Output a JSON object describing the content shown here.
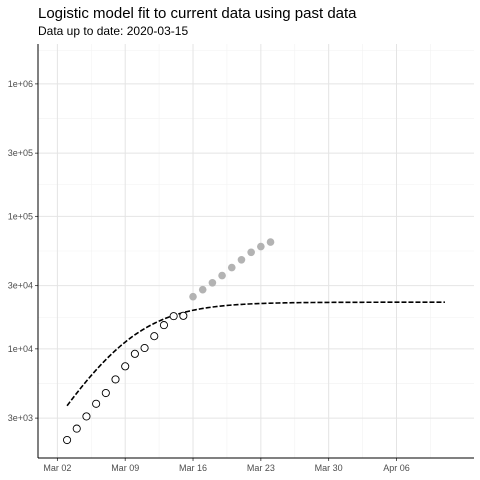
{
  "chart_data": {
    "type": "scatter",
    "title": "Logistic model fit to current data using past data",
    "subtitle": "Data up to date: 2020-03-15",
    "xlabel": "",
    "ylabel": "",
    "x_scale": "date",
    "y_scale": "log10",
    "xlim": [
      "2020-02-29",
      "2020-04-14"
    ],
    "ylim": [
      1500,
      2000000
    ],
    "x_ticks": [
      {
        "date": "2020-03-02",
        "label": "Mar 02"
      },
      {
        "date": "2020-03-09",
        "label": "Mar 09"
      },
      {
        "date": "2020-03-16",
        "label": "Mar 16"
      },
      {
        "date": "2020-03-23",
        "label": "Mar 23"
      },
      {
        "date": "2020-03-30",
        "label": "Mar 30"
      },
      {
        "date": "2020-04-06",
        "label": "Apr 06"
      }
    ],
    "y_ticks": [
      {
        "value": 3000,
        "label": "3e+03"
      },
      {
        "value": 10000,
        "label": "1e+04"
      },
      {
        "value": 30000,
        "label": "3e+04"
      },
      {
        "value": 100000,
        "label": "1e+05"
      },
      {
        "value": 300000,
        "label": "3e+05"
      },
      {
        "value": 1000000,
        "label": "1e+06"
      }
    ],
    "grid": true,
    "series": [
      {
        "marker": "hollow-circle",
        "color": "#000000",
        "points": [
          {
            "x": "2020-03-03",
            "y": 2050
          },
          {
            "x": "2020-03-04",
            "y": 2500
          },
          {
            "x": "2020-03-05",
            "y": 3090
          },
          {
            "x": "2020-03-06",
            "y": 3850
          },
          {
            "x": "2020-03-07",
            "y": 4640
          },
          {
            "x": "2020-03-08",
            "y": 5880
          },
          {
            "x": "2020-03-09",
            "y": 7380
          },
          {
            "x": "2020-03-10",
            "y": 9170
          },
          {
            "x": "2020-03-11",
            "y": 10150
          },
          {
            "x": "2020-03-12",
            "y": 12460
          },
          {
            "x": "2020-03-13",
            "y": 15110
          },
          {
            "x": "2020-03-14",
            "y": 17660
          },
          {
            "x": "2020-03-15",
            "y": 17750
          }
        ]
      },
      {
        "marker": "filled-circle",
        "color": "#b3b3b3",
        "points": [
          {
            "x": "2020-03-16",
            "y": 24750
          },
          {
            "x": "2020-03-17",
            "y": 27980
          },
          {
            "x": "2020-03-18",
            "y": 31510
          },
          {
            "x": "2020-03-19",
            "y": 35710
          },
          {
            "x": "2020-03-20",
            "y": 41040
          },
          {
            "x": "2020-03-21",
            "y": 47020
          },
          {
            "x": "2020-03-22",
            "y": 53580
          },
          {
            "x": "2020-03-23",
            "y": 59140
          },
          {
            "x": "2020-03-24",
            "y": 63930
          }
        ]
      }
    ],
    "fit": {
      "type": "logistic",
      "line_style": "dashed",
      "color": "#000000",
      "x_start": "2020-03-03",
      "x_end": "2020-04-11",
      "plateau": 22500,
      "midpoint_date": "2020-03-09",
      "growth_rate": 0.27
    }
  }
}
